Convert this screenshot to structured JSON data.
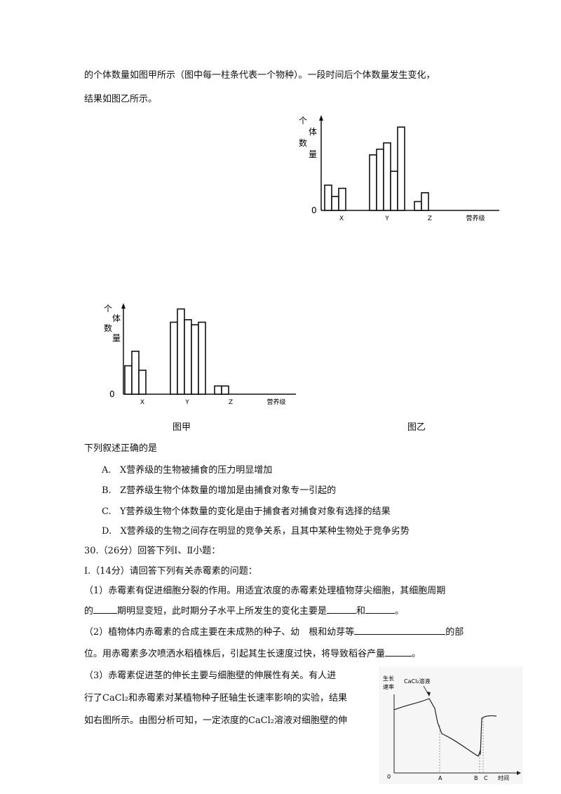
{
  "intro": {
    "line1": "的个体数量如图甲所示（图中每一柱条代表一个物种）。一段时间后个体数量发生变化，",
    "line2": "结果如图乙所示。"
  },
  "figure_yi": {
    "ylabel": "个体数量",
    "origin": "0",
    "xlabel": "营养级",
    "groups": [
      "X",
      "Y",
      "Z"
    ],
    "bars": [
      [
        4,
        2.2,
        3.5
      ],
      [
        8.8,
        9.7,
        10.7,
        6.2,
        13.2
      ],
      [
        1.4,
        2.8
      ]
    ],
    "caption": "图乙"
  },
  "figure_jia": {
    "ylabel": "个体数量",
    "origin": "0",
    "xlabel": "营养级",
    "groups": [
      "X",
      "Y",
      "Z"
    ],
    "bars": [
      [
        4.5,
        6.8,
        3.8
      ],
      [
        11.4,
        13.5,
        11.8,
        11,
        11.4
      ],
      [
        1.3,
        1.3
      ]
    ],
    "caption": "图甲"
  },
  "question": {
    "stem": "下列叙述正确的是",
    "options": [
      {
        "label": "A.",
        "text": "X营养级的生物被捕食的压力明显增加"
      },
      {
        "label": "B.",
        "text": "Z营养级生物个体数量的增加是由捕食对象专一引起的"
      },
      {
        "label": "C.",
        "text": "Y营养级生物个体数量的变化是由于捕食者对捕食对象有选择的结果"
      },
      {
        "label": "D.",
        "text": "X营养级的生物之间存在明显的竞争关系，且其中某种生物处于竞争劣势"
      }
    ]
  },
  "q30": {
    "title": "30.（26分）回答下列Ⅰ、Ⅱ小题：",
    "part1": "Ⅰ.（14分）请回答下列有关赤霉素的问题：",
    "p1_a": "（1）赤霉素有促进细胞分裂的作用。用适宜浓度的赤霉素处理植物芽尖细胞，其细胞周期",
    "p1_b1": "的",
    "p1_b2": "期明显变短，此时期分子水平上所发生的变化主要是",
    "p1_b3": "和",
    "p1_b4": "。",
    "p2_a1": "（2）植物体内赤霉素的合成主要在未成熟的种子、幼　根和幼芽等",
    "p2_a2": "的部",
    "p2_b1": "位。用赤霉素多次喷洒水稻植株后，引起其生长速度过快，将导致稻谷产量",
    "p2_b2": "。",
    "p3_a": "（3）赤霉素促进茎的伸长主要与细胞壁的伸展性有关。有人进",
    "p3_b": "行了CaCl₂和赤霉素对某植物种子胚轴生长速率影响的实验，结果",
    "p3_c": "如右图所示。由图分析可知，一定浓度的CaCl₂溶液对细胞壁的伸"
  },
  "growth_chart": {
    "ylabel_1": "生长",
    "ylabel_2": "速率",
    "annotation": "CaCl₂溶液",
    "origin": "0",
    "ticks": [
      "A",
      "B",
      "C"
    ],
    "xlabel": "时间"
  }
}
